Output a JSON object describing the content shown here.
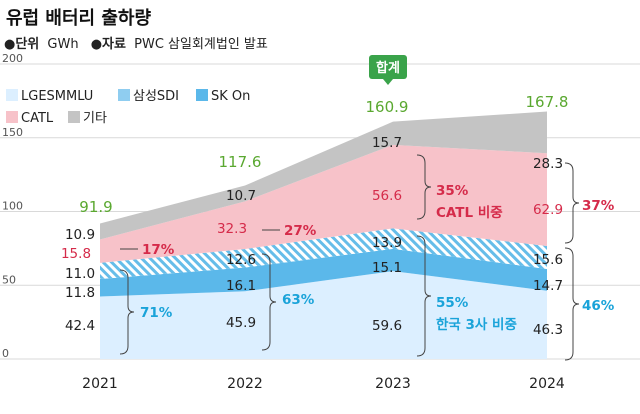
{
  "title": "유럽 배터리 출하량",
  "meta": {
    "unit_label": "●단위",
    "unit_value": "GWh",
    "source_label": "●자료",
    "source_value": "PWC 삼일회계법인 발표"
  },
  "colors": {
    "lges": "#dcefff",
    "sdi": "#8fcdf0",
    "skon": "#5bb8ea",
    "catl": "#f7c2c9",
    "other": "#c4c4c4",
    "total": "#5aa830",
    "red": "#d52b4a",
    "blue": "#1aa3d9",
    "badge": "#3aa34a"
  },
  "chart_data": {
    "type": "area",
    "categories": [
      "2021",
      "2022",
      "2023",
      "2024"
    ],
    "ylim": [
      0,
      200
    ],
    "yticks": [
      0,
      50,
      100,
      150,
      200
    ],
    "series": [
      {
        "name": "LGESMMLU",
        "values": [
          42.4,
          45.9,
          59.6,
          46.3
        ]
      },
      {
        "name": "SK On",
        "values": [
          11.8,
          16.1,
          15.1,
          14.7
        ]
      },
      {
        "name": "삼성SDI",
        "values": [
          11.0,
          12.6,
          13.9,
          15.6
        ]
      },
      {
        "name": "CATL",
        "values": [
          15.8,
          32.3,
          56.6,
          62.9
        ]
      },
      {
        "name": "기타",
        "values": [
          10.9,
          10.7,
          15.7,
          28.3
        ]
      }
    ],
    "totals": [
      "91.9",
      "117.6",
      "160.9",
      "167.8"
    ],
    "value_labels": {
      "LGESMMLU": [
        "42.4",
        "45.9",
        "59.6",
        "46.3"
      ],
      "SK On": [
        "11.8",
        "16.1",
        "15.1",
        "14.7"
      ],
      "삼성SDI": [
        "11.0",
        "12.6",
        "13.9",
        "15.6"
      ],
      "CATL": [
        "15.8",
        "32.3",
        "56.6",
        "62.9"
      ],
      "기타": [
        "10.9",
        "10.7",
        "15.7",
        "28.3"
      ]
    },
    "legend": [
      "LGESMMLU",
      "삼성SDI",
      "SK On",
      "CATL",
      "기타"
    ],
    "annotations": {
      "total_badge": "합계",
      "catl_share": [
        "17%",
        "27%",
        "35%",
        "37%"
      ],
      "catl_share_label": "CATL 비중",
      "korea_share": [
        "71%",
        "63%",
        "55%",
        "46%"
      ],
      "korea_share_label": "한국 3사 비중"
    }
  }
}
